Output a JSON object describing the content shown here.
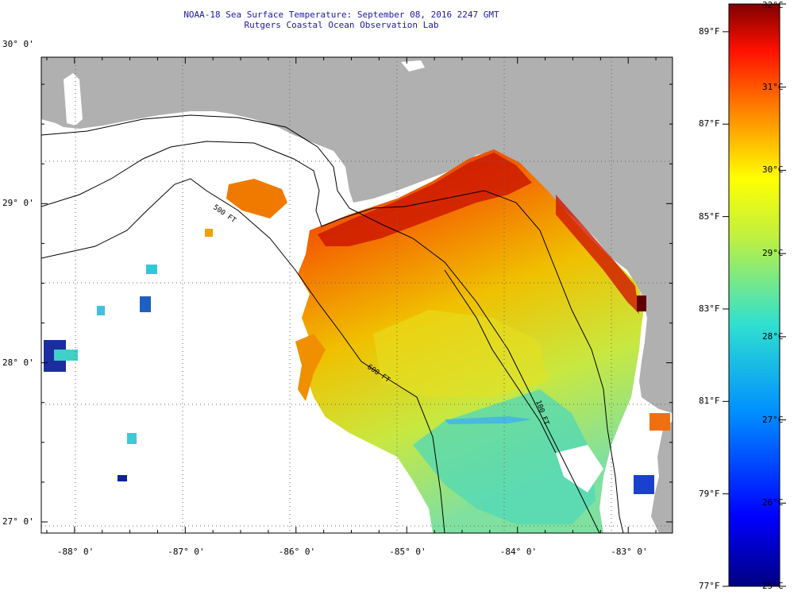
{
  "header": {
    "title": "NOAA-18 Sea Surface Temperature:  September 08, 2016 2247 GMT",
    "subtitle": "Rutgers Coastal Ocean Observation Lab"
  },
  "map": {
    "lon_range": [
      -88.3,
      -82.6
    ],
    "lat_range": [
      26.93,
      29.92
    ],
    "lon_labels": [
      "-88° 0'",
      "-87° 0'",
      "-86° 0'",
      "-85° 0'",
      "-84° 0'",
      "-83° 0'"
    ],
    "lon_values": [
      -88,
      -87,
      -86,
      -85,
      -84,
      -83
    ],
    "lat_labels": [
      "30° 0'",
      "29° 0'",
      "28° 0'",
      "27° 0'"
    ],
    "lat_values": [
      30,
      29,
      28,
      27
    ],
    "contour_labels": [
      "500 FT",
      "600 FT",
      "100 FT"
    ],
    "colors": {
      "land": "#b0b0b0",
      "water": "#ffffff",
      "warm": "#e03000",
      "hot": "#c81400",
      "cool": "#40d0c0",
      "cold": "#0010a0"
    }
  },
  "colorbar": {
    "celsius_labels": [
      "32°C",
      "31°C",
      "30°C",
      "29°C",
      "28°C",
      "27°C",
      "26°C",
      "25°C"
    ],
    "celsius_values": [
      32,
      31,
      30,
      29,
      28,
      27,
      26,
      25
    ],
    "fahrenheit_labels": [
      "89°F",
      "87°F",
      "85°F",
      "83°F",
      "81°F",
      "79°F",
      "77°F"
    ],
    "fahrenheit_values": [
      89,
      87,
      85,
      83,
      81,
      79,
      77
    ],
    "range_c": [
      25,
      32
    ]
  }
}
